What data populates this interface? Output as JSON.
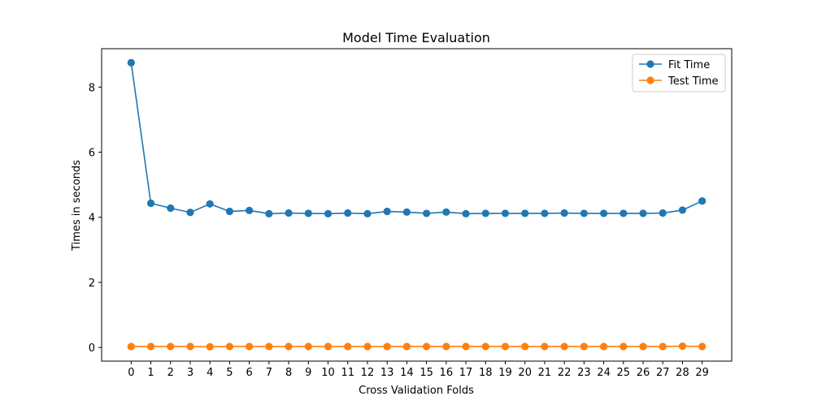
{
  "chart_data": {
    "type": "line",
    "title": "Model Time Evaluation",
    "xlabel": "Cross Validation Folds",
    "ylabel": "Times in seconds",
    "x": [
      0,
      1,
      2,
      3,
      4,
      5,
      6,
      7,
      8,
      9,
      10,
      11,
      12,
      13,
      14,
      15,
      16,
      17,
      18,
      19,
      20,
      21,
      22,
      23,
      24,
      25,
      26,
      27,
      28,
      29
    ],
    "xlim": [
      -1.5,
      30.5
    ],
    "ylim": [
      -0.42,
      9.18
    ],
    "yticks": [
      0,
      2,
      4,
      6,
      8
    ],
    "grid": false,
    "legend_position": "top-right",
    "series": [
      {
        "name": "Fit Time",
        "color": "#1f77b4",
        "marker": "circle",
        "values": [
          8.75,
          4.43,
          4.28,
          4.15,
          4.41,
          4.18,
          4.21,
          4.11,
          4.13,
          4.12,
          4.11,
          4.13,
          4.11,
          4.18,
          4.16,
          4.12,
          4.16,
          4.11,
          4.12,
          4.12,
          4.12,
          4.12,
          4.13,
          4.12,
          4.12,
          4.12,
          4.12,
          4.13,
          4.22,
          4.5
        ]
      },
      {
        "name": "Test Time",
        "color": "#ff7f0e",
        "marker": "circle",
        "values": [
          0.03,
          0.03,
          0.03,
          0.03,
          0.02,
          0.03,
          0.03,
          0.03,
          0.03,
          0.03,
          0.03,
          0.03,
          0.03,
          0.03,
          0.03,
          0.03,
          0.03,
          0.03,
          0.03,
          0.03,
          0.03,
          0.03,
          0.03,
          0.03,
          0.03,
          0.03,
          0.03,
          0.03,
          0.04,
          0.03
        ]
      }
    ]
  }
}
